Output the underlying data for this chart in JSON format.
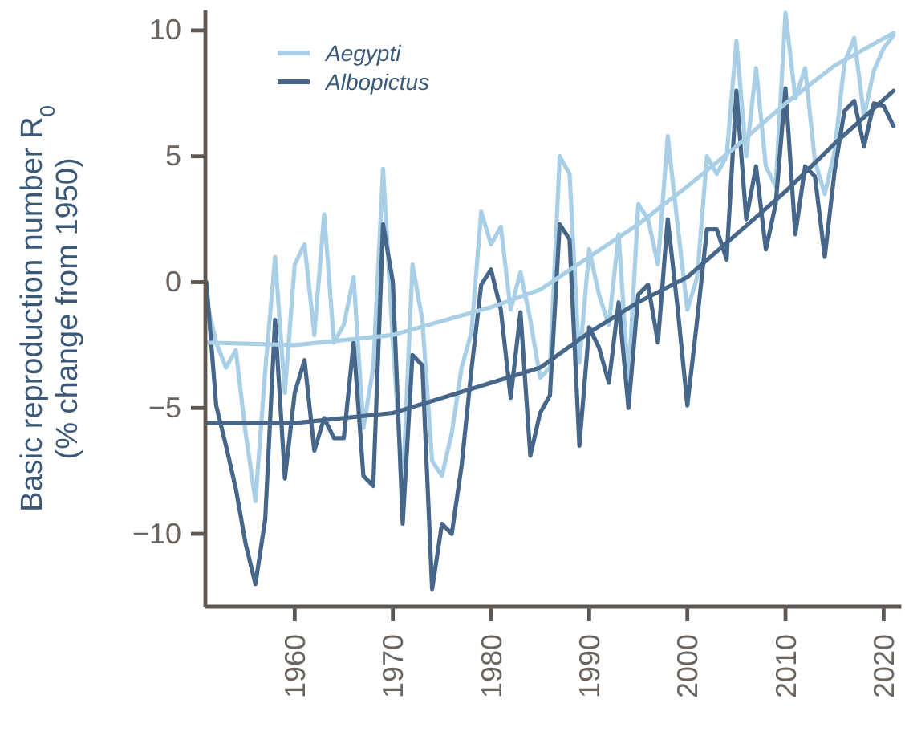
{
  "chart_data": {
    "type": "line",
    "ylabel": "Basic reproduction number R$_{0}$\n(% change from 1950)",
    "xlim": [
      1950.9,
      2021.8
    ],
    "xticks": [
      1960,
      1970,
      1980,
      1990,
      2000,
      2010,
      2020
    ],
    "ylim": [
      -12.9,
      10.8
    ],
    "yticks": [
      -10,
      -5,
      0,
      5,
      10
    ],
    "legend": "top left",
    "grid": false,
    "marker": "none",
    "line_style": "solid",
    "x": [
      1951,
      1952,
      1953,
      1954,
      1955,
      1956,
      1957,
      1958,
      1959,
      1960,
      1961,
      1962,
      1963,
      1964,
      1965,
      1966,
      1967,
      1968,
      1969,
      1970,
      1971,
      1972,
      1973,
      1974,
      1975,
      1976,
      1977,
      1978,
      1979,
      1980,
      1981,
      1982,
      1983,
      1984,
      1985,
      1986,
      1987,
      1988,
      1989,
      1990,
      1991,
      1992,
      1993,
      1994,
      1995,
      1996,
      1997,
      1998,
      1999,
      2000,
      2001,
      2002,
      2003,
      2004,
      2005,
      2006,
      2007,
      2008,
      2009,
      2010,
      2011,
      2012,
      2013,
      2014,
      2015,
      2016,
      2017,
      2018,
      2019,
      2020,
      2021
    ],
    "series": [
      {
        "name": "Aegypti",
        "color": "#a8cfe6",
        "values": [
          -0.7,
          -2.4,
          -3.4,
          -2.7,
          -6.0,
          -8.7,
          -3.5,
          1.0,
          -4.4,
          0.7,
          1.5,
          -2.1,
          2.7,
          -2.4,
          -1.7,
          0.2,
          -5.8,
          -3.4,
          4.5,
          -2.4,
          -8.2,
          0.7,
          -1.5,
          -7.1,
          -7.7,
          -6.0,
          -3.4,
          -2.0,
          2.8,
          1.5,
          2.2,
          -1.1,
          0.4,
          -1.5,
          -3.8,
          -3.4,
          5.0,
          4.3,
          -3.2,
          1.3,
          -0.5,
          -1.7,
          1.9,
          -4.0,
          3.1,
          2.5,
          0.7,
          5.8,
          2.3,
          -1.1,
          0.2,
          5.0,
          4.3,
          5.0,
          9.6,
          5.0,
          8.5,
          4.6,
          3.8,
          10.7,
          7.3,
          8.5,
          4.8,
          3.5,
          5.2,
          8.7,
          9.7,
          6.6,
          8.4,
          9.3,
          9.8
        ]
      },
      {
        "name": "Albopictus",
        "color": "#46678a",
        "values": [
          0,
          -4.9,
          -6.5,
          -8.2,
          -10.4,
          -12.0,
          -9.4,
          -1.5,
          -7.8,
          -4.4,
          -3.1,
          -6.7,
          -5.4,
          -6.2,
          -6.2,
          -2.4,
          -7.7,
          -8.1,
          2.3,
          0,
          -9.6,
          -2.9,
          -3.3,
          -12.2,
          -9.6,
          -10.0,
          -7.3,
          -3.5,
          -0.1,
          0.5,
          -1.1,
          -4.6,
          -1.2,
          -6.9,
          -5.2,
          -4.5,
          2.3,
          1.7,
          -6.5,
          -1.8,
          -2.6,
          -4.0,
          -0.8,
          -5.0,
          -0.5,
          -0.1,
          -2.4,
          2.5,
          -1.0,
          -4.9,
          -1.5,
          2.1,
          2.1,
          0.9,
          7.6,
          2.5,
          4.6,
          1.3,
          3.1,
          7.7,
          1.9,
          4.6,
          4.2,
          1.0,
          4.4,
          6.8,
          7.2,
          5.4,
          7.1,
          7.0,
          6.2
        ]
      },
      {
        "type": "line",
        "color": "#a8cfe6",
        "x": [
          1951,
          1960,
          1970,
          1980,
          1985,
          1990,
          1995,
          2000,
          2005,
          2010,
          2015,
          2021
        ],
        "values": [
          -2.4,
          -2.5,
          -2.1,
          -1.0,
          -0.3,
          1.0,
          2.3,
          3.8,
          5.4,
          7.1,
          8.6,
          9.9
        ]
      },
      {
        "type": "line",
        "color": "#46678a",
        "x": [
          1951,
          1960,
          1970,
          1980,
          1985,
          1990,
          1995,
          2000,
          2005,
          2010,
          2015,
          2021
        ],
        "values": [
          -5.6,
          -5.6,
          -5.2,
          -4.0,
          -3.4,
          -2.0,
          -0.8,
          0.2,
          1.9,
          3.6,
          5.5,
          7.6
        ]
      }
    ]
  }
}
